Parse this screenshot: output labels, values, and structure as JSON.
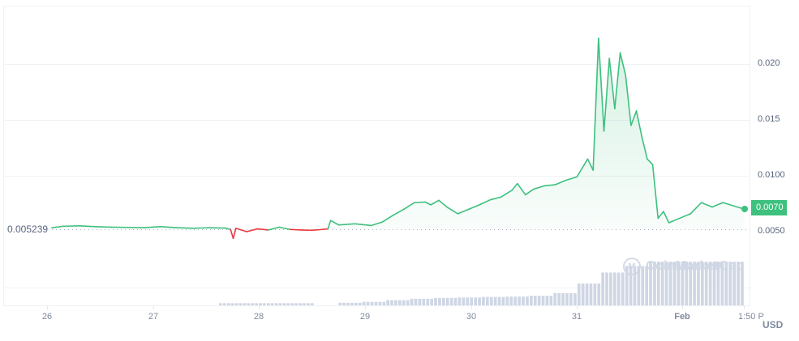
{
  "chart_data": {
    "type": "line",
    "title": "",
    "currency": "USD",
    "xlabel": "",
    "ylabel": "",
    "x_ticks": [
      "26",
      "27",
      "28",
      "29",
      "30",
      "31",
      "Feb",
      "1:50 P"
    ],
    "y_ticks": [
      "0.020",
      "0.015",
      "0.0100",
      "0.0050"
    ],
    "ylim": [
      0.0035,
      0.0245
    ],
    "grid": true,
    "baseline": {
      "value": 0.005239,
      "label": "0.005239",
      "style": "dotted"
    },
    "current_price": {
      "value": 0.007,
      "label": "0.0070"
    },
    "colors": {
      "above_baseline": "#3ec07e",
      "below_baseline": "#ea3943",
      "volume": "#cfd6e4",
      "badge": "#3ec07e"
    },
    "series": [
      {
        "name": "Price",
        "points": [
          [
            0.0,
            0.00535
          ],
          [
            0.02,
            0.00548
          ],
          [
            0.05,
            0.00552
          ],
          [
            0.08,
            0.00545
          ],
          [
            0.11,
            0.0054
          ],
          [
            0.14,
            0.00538
          ],
          [
            0.17,
            0.00536
          ],
          [
            0.2,
            0.00545
          ],
          [
            0.23,
            0.00536
          ],
          [
            0.26,
            0.0053
          ],
          [
            0.29,
            0.00535
          ],
          [
            0.32,
            0.00532
          ],
          [
            0.33,
            0.0052
          ],
          [
            0.335,
            0.0044
          ],
          [
            0.34,
            0.0053
          ],
          [
            0.36,
            0.005
          ],
          [
            0.38,
            0.00525
          ],
          [
            0.4,
            0.00515
          ],
          [
            0.42,
            0.0054
          ],
          [
            0.44,
            0.0052
          ],
          [
            0.46,
            0.00515
          ],
          [
            0.48,
            0.00512
          ],
          [
            0.5,
            0.0052
          ],
          [
            0.51,
            0.00525
          ],
          [
            0.515,
            0.006
          ],
          [
            0.53,
            0.0056
          ],
          [
            0.56,
            0.0057
          ],
          [
            0.59,
            0.00555
          ],
          [
            0.61,
            0.00585
          ],
          [
            0.63,
            0.00645
          ],
          [
            0.65,
            0.007
          ],
          [
            0.67,
            0.0076
          ],
          [
            0.69,
            0.00765
          ],
          [
            0.7,
            0.0074
          ],
          [
            0.715,
            0.0078
          ],
          [
            0.73,
            0.0072
          ],
          [
            0.75,
            0.0066
          ],
          [
            0.77,
            0.007
          ],
          [
            0.79,
            0.0074
          ],
          [
            0.81,
            0.00785
          ],
          [
            0.83,
            0.0081
          ],
          [
            0.85,
            0.0087
          ],
          [
            0.86,
            0.0093
          ],
          [
            0.875,
            0.0083
          ],
          [
            0.89,
            0.0088
          ],
          [
            0.91,
            0.0091
          ],
          [
            0.93,
            0.0092
          ],
          [
            0.95,
            0.0096
          ],
          [
            0.97,
            0.0099
          ],
          [
            0.99,
            0.0115
          ],
          [
            1.0,
            0.0105
          ],
          [
            1.01,
            0.0223
          ],
          [
            1.02,
            0.014
          ],
          [
            1.03,
            0.0205
          ],
          [
            1.04,
            0.016
          ],
          [
            1.05,
            0.021
          ],
          [
            1.06,
            0.019
          ],
          [
            1.07,
            0.0145
          ],
          [
            1.08,
            0.0158
          ],
          [
            1.09,
            0.0135
          ],
          [
            1.1,
            0.0115
          ],
          [
            1.11,
            0.011
          ],
          [
            1.12,
            0.0062
          ],
          [
            1.13,
            0.0068
          ],
          [
            1.14,
            0.0058
          ],
          [
            1.16,
            0.0062
          ],
          [
            1.18,
            0.0066
          ],
          [
            1.2,
            0.0076
          ],
          [
            1.22,
            0.0072
          ],
          [
            1.24,
            0.0076
          ],
          [
            1.26,
            0.0073
          ],
          [
            1.28,
            0.007
          ]
        ]
      },
      {
        "name": "Volume",
        "values_relative": [
          0,
          0,
          0,
          0,
          0,
          0,
          0,
          0.05,
          0.05,
          0.05,
          0.05,
          0,
          0.06,
          0.08,
          0.12,
          0.15,
          0.17,
          0.18,
          0.19,
          0.2,
          0.22,
          0.28,
          0.5,
          0.75,
          0.9,
          1.0,
          1.0,
          1.0,
          1.0
        ]
      }
    ]
  },
  "axis": {
    "y_labels": [
      "0.020",
      "0.015",
      "0.0100",
      "0.0050"
    ],
    "x_labels": [
      "26",
      "27",
      "28",
      "29",
      "30",
      "31",
      "Feb",
      "1:50 P"
    ],
    "baseline_label": "0.005239",
    "price_badge": "0.0070",
    "currency": "USD"
  },
  "watermark": {
    "text": "CoinMarketCap",
    "icon": "coinmarketcap-logo-icon"
  }
}
